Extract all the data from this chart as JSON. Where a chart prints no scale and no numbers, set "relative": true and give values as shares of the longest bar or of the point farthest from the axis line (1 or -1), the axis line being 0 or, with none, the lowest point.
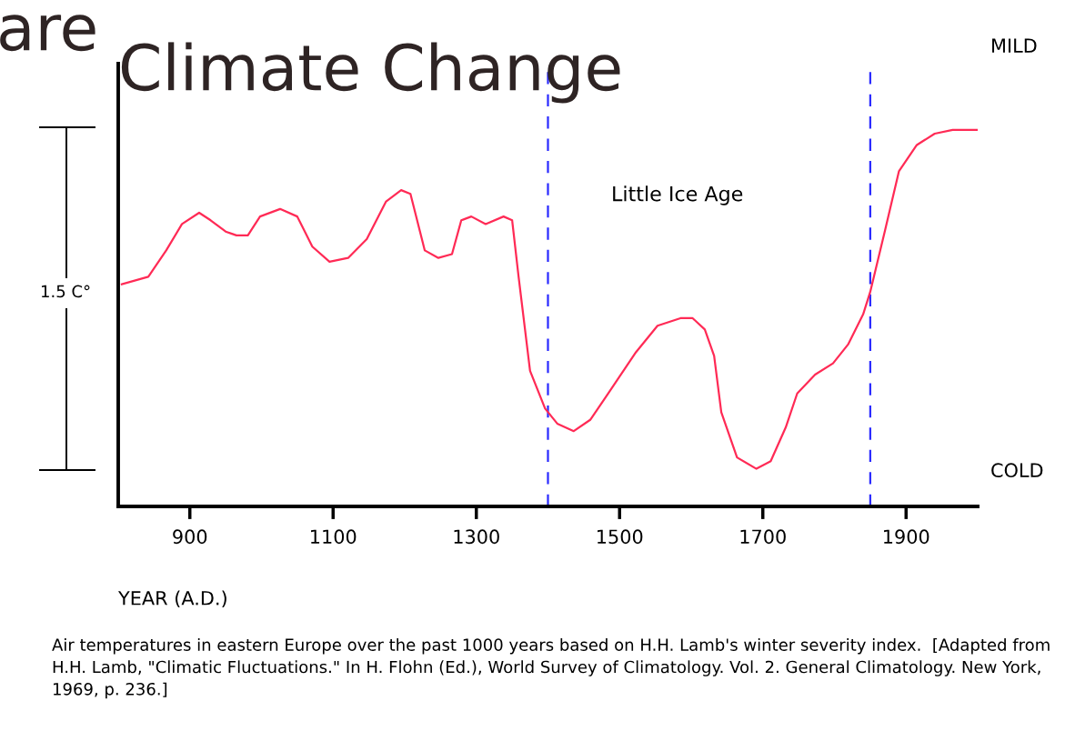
{
  "chart_data": {
    "type": "line",
    "title": "Climate Change",
    "xlabel": "YEAR (A.D.)",
    "relative": true,
    "xlim": [
      800,
      2000
    ],
    "xticks": [
      900,
      1100,
      1300,
      1500,
      1700,
      1900
    ],
    "grid": false,
    "legend": false,
    "marker": "none",
    "line_style": "solid",
    "ref_lines": [
      {
        "axis": "x",
        "value": 1400,
        "color": "#2b2bff",
        "line_style": "dashed"
      },
      {
        "axis": "x",
        "value": 1850,
        "color": "#2b2bff",
        "line_style": "dashed"
      }
    ],
    "annotations": [
      "are",
      "Little Ice Age",
      "MILD",
      "COLD",
      "1.5 C°",
      "Air temperatures in eastern Europe over the past 1000 years based on H.H. Lamb's winter severity index.  [Adapted from H.H. Lamb, \"Climatic Fluctuations.\" In H. Flohn (Ed.), World Survey of Climatology. Vol. 2. General Climatology. New York, 1969, p. 236.]"
    ],
    "series": [
      {
        "color": "#ff2a55",
        "x": [
          805,
          842,
          867,
          889,
          913,
          929,
          950,
          965,
          981,
          998,
          1026,
          1050,
          1071,
          1095,
          1121,
          1147,
          1174,
          1195,
          1208,
          1228,
          1247,
          1266,
          1279,
          1293,
          1313,
          1338,
          1350,
          1359,
          1375,
          1396,
          1413,
          1436,
          1459,
          1484,
          1523,
          1553,
          1585,
          1602,
          1619,
          1632,
          1642,
          1664,
          1691,
          1711,
          1732,
          1748,
          1773,
          1798,
          1819,
          1840,
          1850,
          1869,
          1890,
          1915,
          1940,
          1965,
          1985,
          2000
        ],
        "values": [
          0.59,
          0.61,
          0.68,
          0.75,
          0.78,
          0.76,
          0.73,
          0.72,
          0.72,
          0.77,
          0.79,
          0.77,
          0.69,
          0.65,
          0.66,
          0.71,
          0.81,
          0.84,
          0.83,
          0.68,
          0.66,
          0.67,
          0.76,
          0.77,
          0.75,
          0.77,
          0.76,
          0.61,
          0.36,
          0.26,
          0.22,
          0.2,
          0.23,
          0.3,
          0.41,
          0.48,
          0.5,
          0.5,
          0.47,
          0.4,
          0.25,
          0.13,
          0.1,
          0.12,
          0.21,
          0.3,
          0.35,
          0.38,
          0.43,
          0.51,
          0.57,
          0.72,
          0.89,
          0.96,
          0.99,
          1.0,
          1.0,
          1.0
        ]
      }
    ]
  }
}
